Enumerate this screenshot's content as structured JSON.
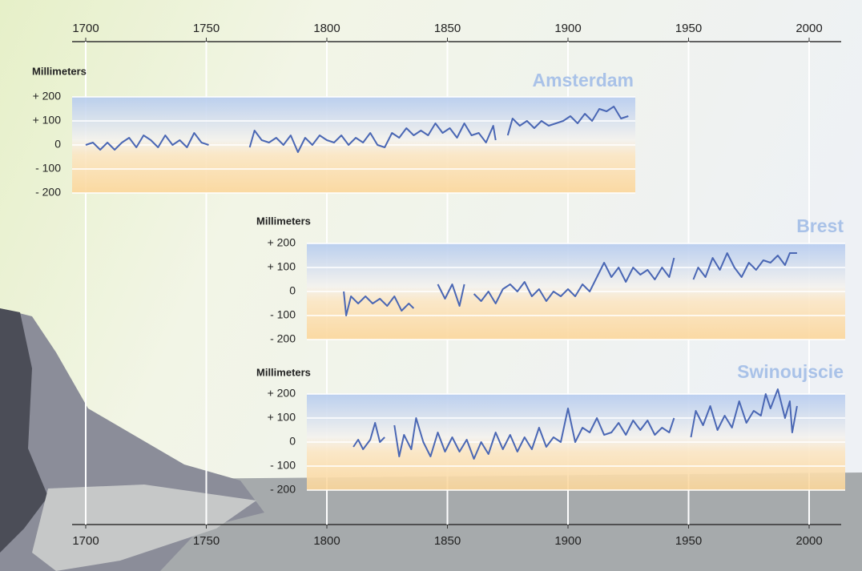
{
  "chart_data": [
    {
      "type": "line",
      "title": "Amsterdam",
      "y_label": "Millimeters",
      "xlim": [
        1700,
        2000
      ],
      "xticks": [
        1700,
        1750,
        1800,
        1850,
        1900,
        1950,
        2000
      ],
      "ylim": [
        -200,
        200
      ],
      "yticks": [
        {
          "value": 200,
          "label": "+ 200"
        },
        {
          "value": 100,
          "label": "+ 100"
        },
        0,
        {
          "value": -100,
          "label": "- 100"
        },
        {
          "value": -200,
          "label": "- 200"
        }
      ],
      "color": "#4a67b4",
      "grid": true,
      "x": [
        1700,
        1703,
        1706,
        1709,
        1712,
        1715,
        1718,
        1721,
        1724,
        1727,
        1730,
        1733,
        1736,
        1739,
        1742,
        1745,
        1748,
        1751,
        1757,
        1768,
        1770,
        1773,
        1776,
        1779,
        1782,
        1785,
        1788,
        1791,
        1794,
        1797,
        1800,
        1803,
        1806,
        1809,
        1812,
        1815,
        1818,
        1821,
        1824,
        1827,
        1830,
        1833,
        1836,
        1839,
        1842,
        1845,
        1848,
        1851,
        1854,
        1857,
        1860,
        1863,
        1866,
        1869,
        1870,
        1872,
        1875,
        1877,
        1880,
        1883,
        1886,
        1889,
        1892,
        1895,
        1898,
        1901,
        1904,
        1907,
        1910,
        1913,
        1916,
        1919,
        1922,
        1925
      ],
      "values": [
        0,
        10,
        -20,
        10,
        -20,
        10,
        30,
        -10,
        40,
        20,
        -10,
        40,
        0,
        20,
        -10,
        50,
        10,
        0,
        null,
        -10,
        60,
        20,
        10,
        30,
        0,
        40,
        -30,
        30,
        0,
        40,
        20,
        10,
        40,
        0,
        30,
        10,
        50,
        0,
        -10,
        50,
        30,
        70,
        40,
        60,
        40,
        90,
        50,
        70,
        30,
        90,
        40,
        50,
        10,
        80,
        20,
        null,
        40,
        110,
        80,
        100,
        70,
        100,
        80,
        90,
        100,
        120,
        90,
        130,
        100,
        150,
        140,
        160,
        110,
        120
      ]
    },
    {
      "type": "line",
      "title": "Brest",
      "y_label": "Millimeters",
      "xlim": [
        1700,
        2000
      ],
      "xticks": [
        1700,
        1750,
        1800,
        1850,
        1900,
        1950,
        2000
      ],
      "ylim": [
        -200,
        200
      ],
      "yticks": [
        {
          "value": 200,
          "label": "+ 200"
        },
        {
          "value": 100,
          "label": "+ 100"
        },
        0,
        {
          "value": -100,
          "label": "- 100"
        },
        {
          "value": -200,
          "label": "- 200"
        }
      ],
      "color": "#4a67b4",
      "grid": true,
      "x": [
        1807,
        1808,
        1810,
        1813,
        1816,
        1819,
        1822,
        1825,
        1828,
        1831,
        1834,
        1836,
        1840,
        1846,
        1849,
        1852,
        1855,
        1857,
        1860,
        1861,
        1864,
        1867,
        1870,
        1873,
        1876,
        1879,
        1882,
        1885,
        1888,
        1891,
        1894,
        1897,
        1900,
        1903,
        1906,
        1909,
        1912,
        1915,
        1918,
        1921,
        1924,
        1927,
        1930,
        1933,
        1936,
        1939,
        1942,
        1944,
        1948,
        1952,
        1954,
        1957,
        1960,
        1963,
        1966,
        1969,
        1972,
        1975,
        1978,
        1981,
        1984,
        1987,
        1990,
        1992,
        1995
      ],
      "values": [
        0,
        -100,
        -20,
        -50,
        -20,
        -50,
        -30,
        -60,
        -20,
        -80,
        -50,
        -70,
        null,
        30,
        -30,
        30,
        -60,
        30,
        null,
        -10,
        -40,
        0,
        -50,
        10,
        30,
        0,
        40,
        -20,
        10,
        -40,
        0,
        -20,
        10,
        -20,
        30,
        0,
        60,
        120,
        60,
        100,
        40,
        100,
        70,
        90,
        50,
        100,
        60,
        140,
        null,
        50,
        100,
        60,
        140,
        90,
        160,
        100,
        60,
        120,
        90,
        130,
        120,
        150,
        110,
        160,
        160
      ]
    },
    {
      "type": "line",
      "title": "Swinoujscie",
      "y_label": "Millimeters",
      "xlim": [
        1700,
        2000
      ],
      "xticks": [
        1700,
        1750,
        1800,
        1850,
        1900,
        1950,
        2000
      ],
      "ylim": [
        -200,
        200
      ],
      "yticks": [
        {
          "value": 200,
          "label": "+ 200"
        },
        {
          "value": 100,
          "label": "+ 100"
        },
        0,
        {
          "value": -100,
          "label": "- 100"
        },
        {
          "value": -200,
          "label": "- 200"
        }
      ],
      "color": "#4a67b4",
      "grid": true,
      "x": [
        1811,
        1813,
        1815,
        1818,
        1820,
        1822,
        1824,
        1826,
        1828,
        1830,
        1832,
        1835,
        1837,
        1840,
        1843,
        1846,
        1849,
        1852,
        1855,
        1858,
        1861,
        1864,
        1867,
        1870,
        1873,
        1876,
        1879,
        1882,
        1885,
        1888,
        1891,
        1894,
        1897,
        1900,
        1903,
        1906,
        1909,
        1912,
        1915,
        1918,
        1921,
        1924,
        1927,
        1930,
        1933,
        1936,
        1939,
        1942,
        1944,
        1948,
        1951,
        1953,
        1956,
        1959,
        1962,
        1965,
        1968,
        1971,
        1974,
        1977,
        1980,
        1982,
        1984,
        1987,
        1990,
        1992,
        1993,
        1995
      ],
      "values": [
        -20,
        10,
        -30,
        10,
        80,
        0,
        20,
        null,
        70,
        -60,
        30,
        -30,
        100,
        0,
        -60,
        40,
        -40,
        20,
        -40,
        10,
        -70,
        0,
        -50,
        40,
        -30,
        30,
        -40,
        20,
        -30,
        60,
        -20,
        20,
        0,
        140,
        0,
        60,
        40,
        100,
        30,
        40,
        80,
        30,
        90,
        50,
        90,
        30,
        60,
        40,
        100,
        null,
        20,
        130,
        70,
        150,
        50,
        110,
        60,
        170,
        80,
        130,
        110,
        200,
        140,
        220,
        100,
        170,
        40,
        150
      ]
    }
  ]
}
